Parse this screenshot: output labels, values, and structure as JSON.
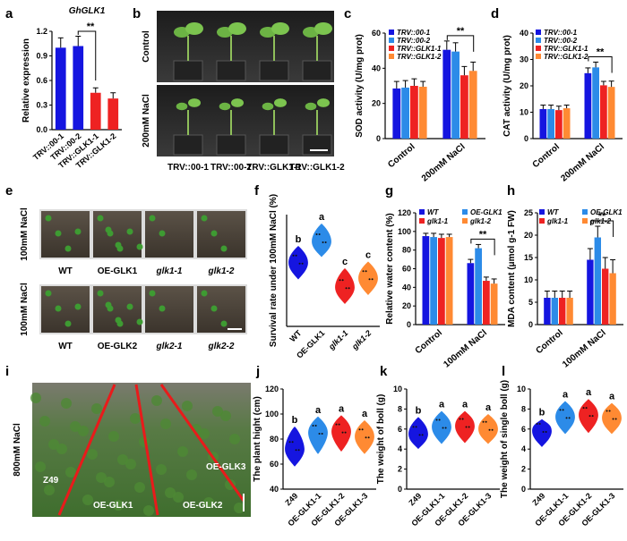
{
  "panels": {
    "a": "a",
    "b": "b",
    "c": "c",
    "d": "d",
    "e": "e",
    "f": "f",
    "g": "g",
    "h": "h",
    "i": "i",
    "j": "j",
    "k": "k",
    "l": "l"
  },
  "colors": {
    "blue": "#1515e0",
    "lightblue": "#2c8be8",
    "red": "#ee2222",
    "orange": "#ff8a33",
    "grey": "#cccccc",
    "soil": "#4a4238",
    "plant": "#3e9b32"
  },
  "photo_b": {
    "row_labels": [
      "Control",
      "200mM NaCl"
    ],
    "col_labels": [
      "TRV::00-1",
      "TRV::00-2",
      "TRV::GLK1-1",
      "TRV::GLK1-2"
    ]
  },
  "photo_e": {
    "row_labels": [
      "100mM NaCl",
      "100mM NaCl"
    ],
    "top_labels": [
      "WT",
      "OE-GLK1",
      "glk1-1",
      "glk1-2"
    ],
    "bottom_labels": [
      "WT",
      "OE-GLK2",
      "glk2-1",
      "glk2-2"
    ]
  },
  "photo_i": {
    "row_label": "800mM NaCl",
    "field_labels": [
      "Z49",
      "OE-GLK1",
      "OE-GLK2",
      "OE-GLK3"
    ]
  },
  "chart_data": [
    {
      "id": "a",
      "type": "bar",
      "title": "GhGLK1",
      "categories": [
        "TRV::00-1",
        "TRV::00-2",
        "TRV::GLK1-1",
        "TRV::GLK1-2"
      ],
      "values": [
        1.0,
        1.02,
        0.45,
        0.38
      ],
      "errors": [
        0.12,
        0.12,
        0.06,
        0.07
      ],
      "colors": [
        "#1515e0",
        "#1515e0",
        "#ee2222",
        "#ee2222"
      ],
      "ylabel": "Relative expression",
      "ylim": [
        0,
        1.2
      ],
      "yticks": [
        "0.0",
        "0.3",
        "0.6",
        "0.9",
        "1.2"
      ],
      "annotation": "**"
    },
    {
      "id": "c",
      "type": "bar",
      "groups": [
        "Control",
        "200mM NaCl"
      ],
      "series": [
        {
          "name": "TRV::00-1",
          "values": [
            28.5,
            50.5
          ],
          "errors": [
            4,
            5
          ],
          "color": "#1515e0"
        },
        {
          "name": "TRV::00-2",
          "values": [
            29,
            49.5
          ],
          "errors": [
            4,
            5
          ],
          "color": "#2c8be8"
        },
        {
          "name": "TRV::GLK1-1",
          "values": [
            30,
            36
          ],
          "errors": [
            4,
            5
          ],
          "color": "#ee2222"
        },
        {
          "name": "TRV::GLK1-2",
          "values": [
            29.5,
            38.5
          ],
          "errors": [
            3,
            5
          ],
          "color": "#ff8a33"
        }
      ],
      "ylabel": "SOD activity (U/mg prot)",
      "ylim": [
        0,
        60
      ],
      "yticks": [
        "0",
        "20",
        "40",
        "60"
      ],
      "annotation": "**"
    },
    {
      "id": "d",
      "type": "bar",
      "groups": [
        "Control",
        "200mM NaCl"
      ],
      "series": [
        {
          "name": "TRV::00-1",
          "values": [
            11.2,
            24.8
          ],
          "errors": [
            1.5,
            2
          ],
          "color": "#1515e0"
        },
        {
          "name": "TRV::00-2",
          "values": [
            11.2,
            27
          ],
          "errors": [
            1.5,
            2
          ],
          "color": "#2c8be8"
        },
        {
          "name": "TRV::GLK1-1",
          "values": [
            10.8,
            20.2
          ],
          "errors": [
            1.5,
            1.5
          ],
          "color": "#ee2222"
        },
        {
          "name": "TRV::GLK1-2",
          "values": [
            11.5,
            19.6
          ],
          "errors": [
            1.2,
            2.2
          ],
          "color": "#ff8a33"
        }
      ],
      "ylabel": "CAT activity (U/mg prot)",
      "ylim": [
        0,
        40
      ],
      "yticks": [
        "0",
        "10",
        "20",
        "30",
        "40"
      ],
      "annotation": "**"
    },
    {
      "id": "f",
      "type": "violin",
      "categories": [
        "WT",
        "OE-GLK1",
        "glk1-1",
        "glk1-2"
      ],
      "medians": [
        0.57,
        0.76,
        0.35,
        0.43
      ],
      "ranges": [
        [
          0.42,
          0.72
        ],
        [
          0.62,
          0.92
        ],
        [
          0.2,
          0.52
        ],
        [
          0.28,
          0.58
        ]
      ],
      "letters": [
        "b",
        "a",
        "c",
        "c"
      ],
      "colors": [
        "#1515e0",
        "#2c8be8",
        "#ee2222",
        "#ff8a33"
      ],
      "ylabel": "Survival rate under 100mM NaCl (%)",
      "ylim": [
        0,
        1.0
      ]
    },
    {
      "id": "g",
      "type": "bar",
      "groups": [
        "Control",
        "100mM NaCl"
      ],
      "series": [
        {
          "name": "WT",
          "values": [
            95,
            66
          ],
          "errors": [
            3,
            4
          ],
          "color": "#1515e0"
        },
        {
          "name": "OE-GLK1",
          "values": [
            94,
            82
          ],
          "errors": [
            4,
            4
          ],
          "color": "#2c8be8"
        },
        {
          "name": "glk1-1",
          "values": [
            93,
            47
          ],
          "errors": [
            4,
            4
          ],
          "color": "#ee2222"
        },
        {
          "name": "glk1-2",
          "values": [
            94,
            44
          ],
          "errors": [
            3,
            5
          ],
          "color": "#ff8a33"
        }
      ],
      "ylabel": "Relative water content (%)",
      "ylim": [
        0,
        120
      ],
      "yticks": [
        "0",
        "20",
        "40",
        "60",
        "80",
        "100",
        "120"
      ],
      "annotation": "**"
    },
    {
      "id": "h",
      "type": "bar",
      "groups": [
        "Control",
        "100mM NaCl"
      ],
      "series": [
        {
          "name": "WT",
          "values": [
            6,
            14.5
          ],
          "errors": [
            1.5,
            2.5
          ],
          "color": "#1515e0"
        },
        {
          "name": "OE-GLK1",
          "values": [
            6,
            19.5
          ],
          "errors": [
            1.5,
            2.5
          ],
          "color": "#2c8be8"
        },
        {
          "name": "glk1-1",
          "values": [
            6,
            12.5
          ],
          "errors": [
            1.5,
            2.5
          ],
          "color": "#ee2222"
        },
        {
          "name": "glk1-2",
          "values": [
            6,
            11.5
          ],
          "errors": [
            1.5,
            3
          ],
          "color": "#ff8a33"
        }
      ],
      "ylabel": "MDA content (μmol g-1 FW)",
      "ylim": [
        0,
        25
      ],
      "yticks": [
        "0",
        "5",
        "10",
        "15",
        "20",
        "25"
      ],
      "annotation": "**"
    },
    {
      "id": "j",
      "type": "violin",
      "categories": [
        "Z49",
        "OE-GLK1-1",
        "OE-GLK1-2",
        "OE-GLK1-3"
      ],
      "medians": [
        72,
        85,
        86,
        82
      ],
      "ranges": [
        [
          58,
          90
        ],
        [
          68,
          98
        ],
        [
          70,
          99
        ],
        [
          68,
          95
        ]
      ],
      "letters": [
        "b",
        "a",
        "a",
        "a"
      ],
      "colors": [
        "#1515e0",
        "#2c8be8",
        "#ee2222",
        "#ff8a33"
      ],
      "ylabel": "The plant hight (cm)",
      "ylim": [
        40,
        120
      ],
      "yticks": [
        "40",
        "60",
        "80",
        "100",
        "120"
      ]
    },
    {
      "id": "k",
      "type": "violin",
      "categories": [
        "Z49",
        "OE-GLK1-1",
        "OE-GLK1-2",
        "OE-GLK1-3"
      ],
      "medians": [
        5.5,
        6.2,
        6.3,
        6.0
      ],
      "ranges": [
        [
          4.0,
          7.2
        ],
        [
          4.5,
          7.8
        ],
        [
          4.6,
          7.8
        ],
        [
          4.5,
          7.5
        ]
      ],
      "letters": [
        "b",
        "a",
        "a",
        "a"
      ],
      "colors": [
        "#1515e0",
        "#2c8be8",
        "#ee2222",
        "#ff8a33"
      ],
      "ylabel": "The weight of boll (g)",
      "ylim": [
        0,
        10
      ],
      "yticks": [
        "0",
        "2",
        "4",
        "6",
        "8",
        "10"
      ]
    },
    {
      "id": "l",
      "type": "violin",
      "categories": [
        "Z49",
        "OE-GLK1-1",
        "OE-GLK1-2",
        "OE-GLK1-3"
      ],
      "medians": [
        5.8,
        7.2,
        7.4,
        7.1
      ],
      "ranges": [
        [
          4.2,
          7.0
        ],
        [
          5.5,
          8.8
        ],
        [
          5.6,
          9.0
        ],
        [
          5.5,
          8.6
        ]
      ],
      "letters": [
        "b",
        "a",
        "a",
        "a"
      ],
      "colors": [
        "#1515e0",
        "#2c8be8",
        "#ee2222",
        "#ff8a33"
      ],
      "ylabel": "The weight of single boll (g)",
      "ylim": [
        0,
        10
      ],
      "yticks": [
        "0",
        "2",
        "4",
        "6",
        "8",
        "10"
      ]
    }
  ]
}
